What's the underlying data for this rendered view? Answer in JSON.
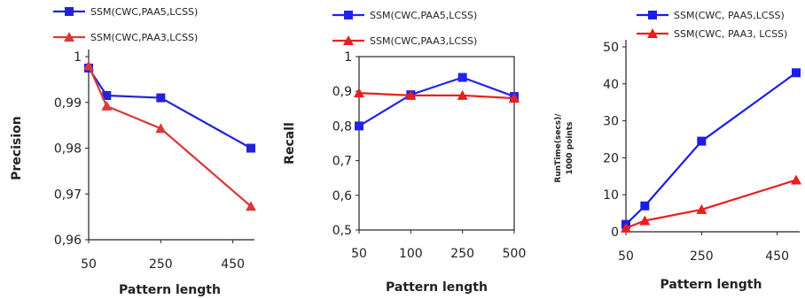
{
  "chart_data": [
    {
      "type": "line",
      "xlabel": "Pattern length",
      "ylabel": "Precision",
      "x": [
        50,
        100,
        250,
        500
      ],
      "xticks": [
        50,
        250,
        450
      ],
      "xlim": [
        50,
        500
      ],
      "ylim": [
        0.96,
        1.0
      ],
      "yticks": [
        "0,96",
        "0,97",
        "0,98",
        "0,99",
        "1"
      ],
      "ytick_values": [
        0.96,
        0.97,
        0.98,
        0.99,
        1.0
      ],
      "grid": false,
      "legend": "top",
      "series": [
        {
          "name": "SSM(CWC,PAA5,LCSS)",
          "color": "#2323d6",
          "marker": "square",
          "values": [
            0.9975,
            0.9915,
            0.991,
            0.98
          ]
        },
        {
          "name": "SSM(CWC,PAA3,LCSS)",
          "color": "#d93a3a",
          "marker": "triangle",
          "values": [
            0.998,
            0.9892,
            0.9843,
            0.9673
          ]
        }
      ]
    },
    {
      "type": "line",
      "xlabel": "Pattern length",
      "ylabel": "Recall",
      "categories": [
        "50",
        "100",
        "250",
        "500"
      ],
      "ylim": [
        0.5,
        1.0
      ],
      "yticks": [
        "0,5",
        "0,6",
        "0,7",
        "0,8",
        "0,9",
        "1"
      ],
      "ytick_values": [
        0.5,
        0.6,
        0.7,
        0.8,
        0.9,
        1.0
      ],
      "grid": false,
      "legend": "top",
      "series": [
        {
          "name": "SSM(CWC,PAA5,LCSS)",
          "color": "#2323f0",
          "marker": "square",
          "values": [
            0.8,
            0.89,
            0.94,
            0.885
          ]
        },
        {
          "name": "SSM(CWC,PAA3,LCSS)",
          "color": "#e82020",
          "marker": "triangle",
          "values": [
            0.895,
            0.888,
            0.888,
            0.88
          ]
        }
      ]
    },
    {
      "type": "line",
      "xlabel": "Pattern length",
      "ylabel": "RunTime(secs)/ 1000  points",
      "x": [
        50,
        100,
        250,
        500
      ],
      "xticks": [
        50,
        250,
        450
      ],
      "xlim": [
        50,
        500
      ],
      "ylim": [
        0,
        50
      ],
      "yticks": [
        "0",
        "10",
        "20",
        "30",
        "40",
        "50"
      ],
      "ytick_values": [
        0,
        10,
        20,
        30,
        40,
        50
      ],
      "grid": false,
      "legend": "top",
      "series": [
        {
          "name": "SSM(CWC, PAA5,LCSS)",
          "color": "#1c1ce8",
          "marker": "square",
          "values": [
            2,
            7,
            24.5,
            43
          ]
        },
        {
          "name": "SSM(CWC, PAA3, LCSS)",
          "color": "#ee1c1c",
          "marker": "triangle",
          "values": [
            1,
            3,
            6,
            14
          ]
        }
      ]
    }
  ]
}
